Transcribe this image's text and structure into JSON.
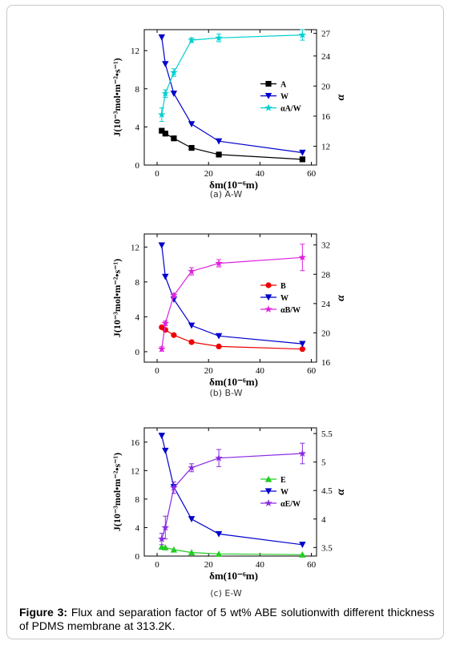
{
  "figure_caption": {
    "label": "Figure 3:",
    "text": "Flux and separation factor of 5 wt% ABE solutionwith different thickness of PDMS membrane at 313.2K."
  },
  "chart_data": [
    {
      "type": "line",
      "panel_label": "(a) A-W",
      "x": [
        1.8,
        3.2,
        6.5,
        13.4,
        24,
        56.5
      ],
      "xlabel": "δm(10⁻⁶m)",
      "ylabel": "J(10⁻³mol•m⁻²•s⁻¹)",
      "y2label": "α",
      "xlim": [
        -5,
        62
      ],
      "ylim": [
        0,
        14.2
      ],
      "y2lim": [
        9.5,
        27.5
      ],
      "xticks": [
        0,
        20,
        40,
        60
      ],
      "yticks": [
        0,
        4,
        8,
        12
      ],
      "y2ticks": [
        12,
        16,
        20,
        24,
        27
      ],
      "legend_position": "right",
      "series": [
        {
          "name": "A",
          "axis": "left",
          "marker": "square",
          "color": "#000000",
          "values": [
            3.6,
            3.3,
            2.8,
            1.8,
            1.1,
            0.6
          ]
        },
        {
          "name": "W",
          "axis": "left",
          "marker": "triangle-down",
          "color": "#0000cc",
          "values": [
            13.4,
            10.6,
            7.5,
            4.3,
            2.5,
            1.3
          ]
        },
        {
          "name": "αA/W",
          "axis": "right",
          "marker": "star",
          "color": "#00d0d0",
          "values": [
            16.2,
            19,
            21.8,
            26.1,
            26.4,
            26.8
          ],
          "errors": [
            0.9,
            0.5,
            0.5,
            0.3,
            0.5,
            0.7
          ]
        }
      ]
    },
    {
      "type": "line",
      "panel_label": "(b) B-W",
      "x": [
        1.8,
        3.2,
        6.5,
        13.4,
        24,
        56.5
      ],
      "xlabel": "δm(10⁻⁶m)",
      "ylabel": "J(10⁻³mol•m⁻²•s⁻¹)",
      "y2label": "α",
      "xlim": [
        -5,
        62
      ],
      "ylim": [
        -1.2,
        13.5
      ],
      "y2lim": [
        16,
        33.5
      ],
      "xticks": [
        0,
        20,
        40,
        60
      ],
      "yticks": [
        0,
        4,
        8,
        12
      ],
      "y2ticks": [
        16,
        20,
        24,
        28,
        32
      ],
      "legend_position": "right",
      "series": [
        {
          "name": "B",
          "axis": "left",
          "marker": "circle",
          "color": "#ee0000",
          "values": [
            2.8,
            2.5,
            1.9,
            1.1,
            0.6,
            0.3
          ]
        },
        {
          "name": "W",
          "axis": "left",
          "marker": "triangle-down",
          "color": "#0000cc",
          "values": [
            12.2,
            8.6,
            6.0,
            3.0,
            1.8,
            0.9
          ]
        },
        {
          "name": "αB/W",
          "axis": "right",
          "marker": "star",
          "color": "#dd22dd",
          "values": [
            17.8,
            21.3,
            25.1,
            28.4,
            29.5,
            30.3
          ],
          "errors": [
            0.3,
            0.3,
            0.3,
            0.5,
            0.5,
            1.8
          ]
        }
      ]
    },
    {
      "type": "line",
      "panel_label": "(c) E-W",
      "x": [
        1.8,
        3.2,
        6.5,
        13.4,
        24,
        56.5
      ],
      "xlabel": "δm(10⁻⁶m)",
      "ylabel": "J(10⁻³mol•m⁻²•s⁻¹)",
      "y2label": "α",
      "xlim": [
        -5,
        62
      ],
      "ylim": [
        0,
        18
      ],
      "y2lim": [
        3.35,
        5.6
      ],
      "xticks": [
        0,
        20,
        40,
        60
      ],
      "yticks": [
        0,
        4,
        8,
        12,
        16
      ],
      "y2ticks": [
        3.5,
        4.0,
        4.5,
        5.0,
        5.5
      ],
      "legend_position": "right",
      "series": [
        {
          "name": "E",
          "axis": "left",
          "marker": "triangle-up",
          "color": "#22cc22",
          "values": [
            1.3,
            1.2,
            0.9,
            0.5,
            0.3,
            0.2
          ]
        },
        {
          "name": "W",
          "axis": "left",
          "marker": "triangle-down",
          "color": "#0000cc",
          "values": [
            16.9,
            14.8,
            9.7,
            5.2,
            3.1,
            1.6
          ]
        },
        {
          "name": "αE/W",
          "axis": "right",
          "marker": "star",
          "color": "#8a2be2",
          "values": [
            3.65,
            3.85,
            4.55,
            4.9,
            5.07,
            5.15
          ],
          "errors": [
            0.1,
            0.2,
            0.1,
            0.07,
            0.15,
            0.18
          ]
        }
      ]
    }
  ]
}
